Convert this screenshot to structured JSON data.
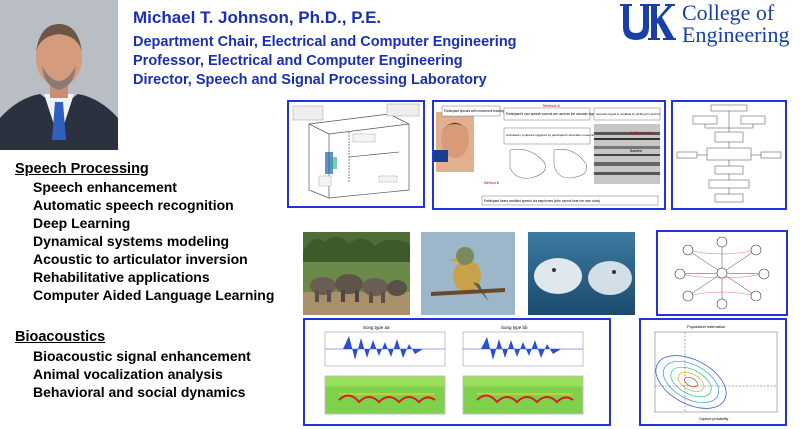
{
  "header": {
    "name": "Michael T. Johnson, Ph.D., P.E.",
    "titles": [
      "Department Chair, Electrical and Computer Engineering",
      "Professor, Electrical and Computer Engineering",
      "Director, Speech and Signal Processing Laboratory"
    ]
  },
  "logo": {
    "line1": "College of",
    "line2": "Engineering",
    "icon": "uk-logo-icon"
  },
  "sections": {
    "speech": {
      "heading": "Speech Processing",
      "items": [
        "Speech enhancement",
        "Automatic speech recognition",
        "Deep Learning",
        "Dynamical systems modeling",
        "Acoustic to articulator inversion",
        "Rehabilitative applications",
        "Computer Aided Language Learning"
      ]
    },
    "bio": {
      "heading": "Bioacoustics",
      "items": [
        "Bioacoustic signal enhancement",
        "Animal vocalization analysis",
        "Behavioral and social dynamics"
      ]
    }
  },
  "figures": {
    "method": {
      "box1": "Participant speaks with movement tracking",
      "box2": "Participant's own speech sounds are used as the acoustic signal",
      "box3": "Articulatory synthesis triggered by participant's articulator movements generates acoustic signal",
      "box4": "Acoustic signal is modified by shifting F1 and F2",
      "bottom": "Participant hears modified speech via earphones (s/he cannot hear her own voice)",
      "methodA": "Method A",
      "methodB": "Method B",
      "full": "Full Perturbation",
      "baseline": "Baseline"
    },
    "song1": {
      "title": "Song type aa"
    },
    "song2": {
      "title": "Song type bb"
    },
    "contour": {
      "title": "Population estimation",
      "x": "Capture probability"
    }
  },
  "colors": {
    "text_blue": "#1a2fb5",
    "frame_blue": "#2233dd",
    "logo_blue": "#1a3fa8"
  }
}
